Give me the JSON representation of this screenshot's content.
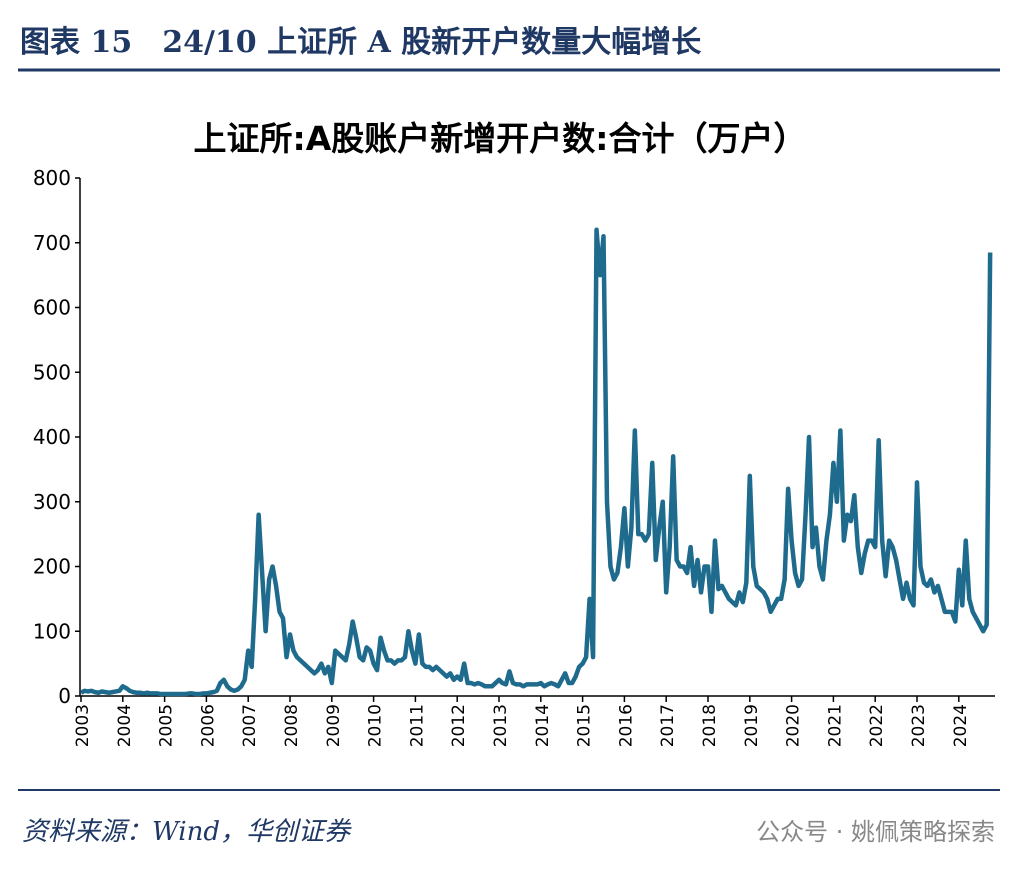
{
  "header": {
    "title": "图表 15　24/10 上证所 A 股新开户数量大幅增长"
  },
  "chart_data": {
    "type": "line",
    "title": "上证所:A股账户新增开户数:合计（万户）",
    "categories": [
      "2003",
      null,
      null,
      null,
      null,
      null,
      null,
      null,
      null,
      null,
      null,
      null,
      "2004",
      null,
      null,
      null,
      null,
      null,
      null,
      null,
      null,
      null,
      null,
      null,
      "2005",
      null,
      null,
      null,
      null,
      null,
      null,
      null,
      null,
      null,
      null,
      null,
      "2006",
      null,
      null,
      null,
      null,
      null,
      null,
      null,
      null,
      null,
      null,
      null,
      "2007",
      null,
      null,
      null,
      null,
      null,
      null,
      null,
      null,
      null,
      null,
      null,
      "2008",
      null,
      null,
      null,
      null,
      null,
      null,
      null,
      null,
      null,
      null,
      null,
      "2009",
      null,
      null,
      null,
      null,
      null,
      null,
      null,
      null,
      null,
      null,
      null,
      "2010",
      null,
      null,
      null,
      null,
      null,
      null,
      null,
      null,
      null,
      null,
      null,
      "2011",
      null,
      null,
      null,
      null,
      null,
      null,
      null,
      null,
      null,
      null,
      null,
      "2012",
      null,
      null,
      null,
      null,
      null,
      null,
      null,
      null,
      null,
      null,
      null,
      "2013",
      null,
      null,
      null,
      null,
      null,
      null,
      null,
      null,
      null,
      null,
      null,
      "2014",
      null,
      null,
      null,
      null,
      null,
      null,
      null,
      null,
      null,
      null,
      null,
      "2015",
      null,
      null,
      null,
      null,
      null,
      null,
      null,
      null,
      null,
      null,
      null,
      "2016",
      null,
      null,
      null,
      null,
      null,
      null,
      null,
      null,
      null,
      null,
      null,
      "2017",
      null,
      null,
      null,
      null,
      null,
      null,
      null,
      null,
      null,
      null,
      null,
      "2018",
      null,
      null,
      null,
      null,
      null,
      null,
      null,
      null,
      null,
      null,
      null,
      "2019",
      null,
      null,
      null,
      null,
      null,
      null,
      null,
      null,
      null,
      null,
      null,
      "2020",
      null,
      null,
      null,
      null,
      null,
      null,
      null,
      null,
      null,
      null,
      null,
      "2021",
      null,
      null,
      null,
      null,
      null,
      null,
      null,
      null,
      null,
      null,
      null,
      "2022",
      null,
      null,
      null,
      null,
      null,
      null,
      null,
      null,
      null,
      null,
      null,
      "2023",
      null,
      null,
      null,
      null,
      null,
      null,
      null,
      null,
      null,
      null,
      null,
      "2024",
      null,
      null,
      null,
      null,
      null,
      null,
      null,
      null,
      null
    ],
    "series": [
      {
        "name": "上证所:A股账户新增开户数:合计",
        "color": "#1f6b8e",
        "values": [
          5,
          8,
          7,
          8,
          6,
          5,
          7,
          6,
          5,
          6,
          7,
          8,
          15,
          12,
          8,
          6,
          5,
          5,
          4,
          5,
          4,
          4,
          4,
          3,
          3,
          3,
          3,
          3,
          3,
          3,
          3,
          4,
          4,
          3,
          3,
          4,
          4,
          5,
          6,
          8,
          20,
          25,
          15,
          10,
          8,
          10,
          15,
          25,
          70,
          45,
          150,
          280,
          190,
          100,
          180,
          200,
          170,
          130,
          120,
          60,
          95,
          70,
          60,
          55,
          50,
          45,
          40,
          35,
          40,
          50,
          35,
          45,
          20,
          70,
          65,
          60,
          55,
          80,
          115,
          90,
          60,
          55,
          75,
          70,
          50,
          40,
          90,
          70,
          55,
          55,
          50,
          55,
          55,
          60,
          100,
          70,
          50,
          95,
          50,
          45,
          45,
          40,
          45,
          40,
          35,
          30,
          35,
          25,
          30,
          25,
          50,
          20,
          20,
          18,
          20,
          18,
          15,
          15,
          15,
          20,
          25,
          20,
          18,
          38,
          20,
          18,
          18,
          15,
          18,
          18,
          18,
          18,
          20,
          15,
          18,
          20,
          18,
          15,
          25,
          35,
          20,
          20,
          30,
          45,
          50,
          60,
          150,
          60,
          720,
          650,
          710,
          300,
          200,
          180,
          190,
          230,
          290,
          200,
          260,
          410,
          250,
          250,
          240,
          250,
          360,
          210,
          260,
          300,
          160,
          230,
          370,
          210,
          200,
          200,
          190,
          230,
          170,
          210,
          160,
          200,
          200,
          130,
          240,
          165,
          170,
          160,
          150,
          145,
          140,
          160,
          145,
          175,
          340,
          200,
          170,
          165,
          160,
          150,
          130,
          140,
          150,
          150,
          180,
          320,
          240,
          190,
          170,
          180,
          280,
          400,
          230,
          260,
          200,
          180,
          240,
          280,
          360,
          300,
          410,
          240,
          280,
          270,
          310,
          230,
          190,
          220,
          240,
          240,
          230,
          395,
          240,
          185,
          240,
          230,
          210,
          180,
          150,
          175,
          150,
          140,
          330,
          200,
          175,
          170,
          180,
          160,
          170,
          150,
          130,
          130,
          130,
          115,
          195,
          140,
          240,
          150,
          130,
          120,
          110,
          100,
          110,
          685
        ]
      }
    ],
    "ylim": [
      0,
      800
    ],
    "yticks": [
      0,
      100,
      200,
      300,
      400,
      500,
      600,
      700,
      800
    ]
  },
  "footer": {
    "source": "资料来源：Wind，华创证券",
    "watermark": "公众号 · 姚佩策略探索"
  }
}
